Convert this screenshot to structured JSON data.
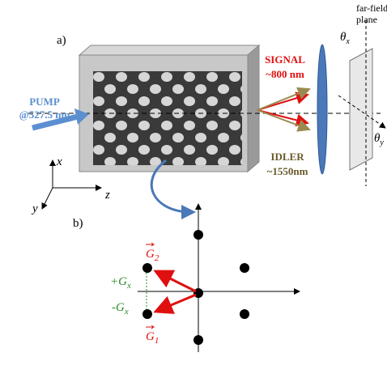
{
  "panel_a": {
    "label": "a)",
    "pump": [
      "PUMP",
      "@527.5 nm"
    ],
    "signal": [
      "SIGNAL",
      "~800 nm"
    ],
    "idler": [
      "IDLER",
      "~1550nm"
    ],
    "far_field": [
      "far-field",
      "plane"
    ],
    "theta_x": {
      "symbol": "θ",
      "sub": "x"
    },
    "theta_y": {
      "symbol": "θ",
      "sub": "y"
    },
    "axes": {
      "x": "x",
      "y": "y",
      "z": "z"
    }
  },
  "panel_b": {
    "label": "b)",
    "g2": {
      "symbol": "G",
      "sub": "2"
    },
    "g1": {
      "symbol": "G",
      "sub": "1"
    },
    "plus_gx": {
      "symbol": "+G",
      "sub": "x"
    },
    "minus_gx": {
      "symbol": "-G",
      "sub": "x"
    }
  }
}
